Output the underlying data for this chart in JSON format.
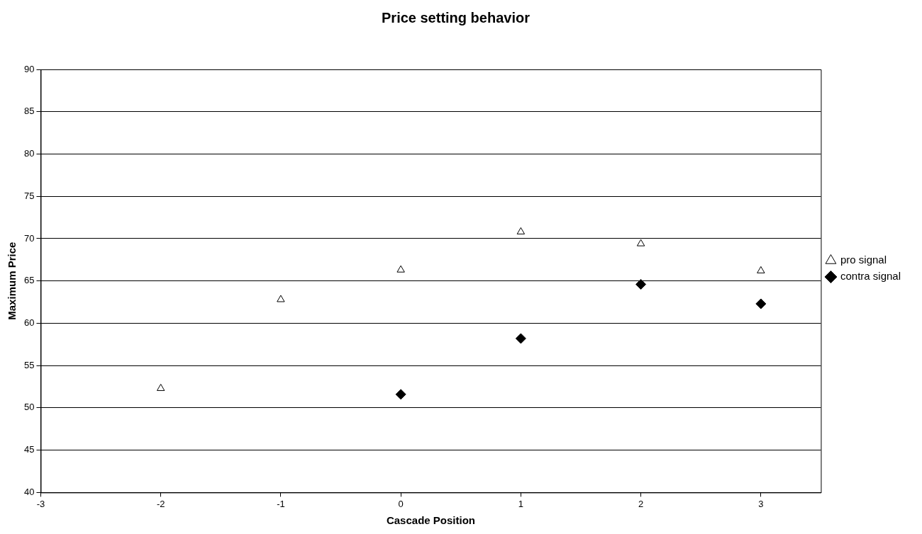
{
  "chart_data": {
    "type": "scatter",
    "title": "Price setting behavior",
    "xlabel": "Cascade Position",
    "ylabel": "Maximum Price",
    "xlim": [
      -3,
      3.5
    ],
    "xticks": [
      -3,
      -2,
      -1,
      0,
      1,
      2,
      3
    ],
    "ylim": [
      40,
      90
    ],
    "yticks": [
      40,
      45,
      50,
      55,
      60,
      65,
      70,
      75,
      80,
      85,
      90
    ],
    "grid": "y",
    "legend": "right",
    "series": [
      {
        "name": "pro signal",
        "color": "#000000",
        "marker": "triangle",
        "x": [
          -2,
          -1,
          0,
          1,
          2,
          3
        ],
        "values": [
          52.3,
          62.8,
          66.3,
          70.8,
          69.4,
          66.2
        ]
      },
      {
        "name": "contra signal",
        "color": "#000000",
        "marker": "diamond",
        "x": [
          0,
          1,
          2,
          3
        ],
        "values": [
          51.6,
          58.2,
          64.6,
          62.3
        ]
      }
    ]
  }
}
